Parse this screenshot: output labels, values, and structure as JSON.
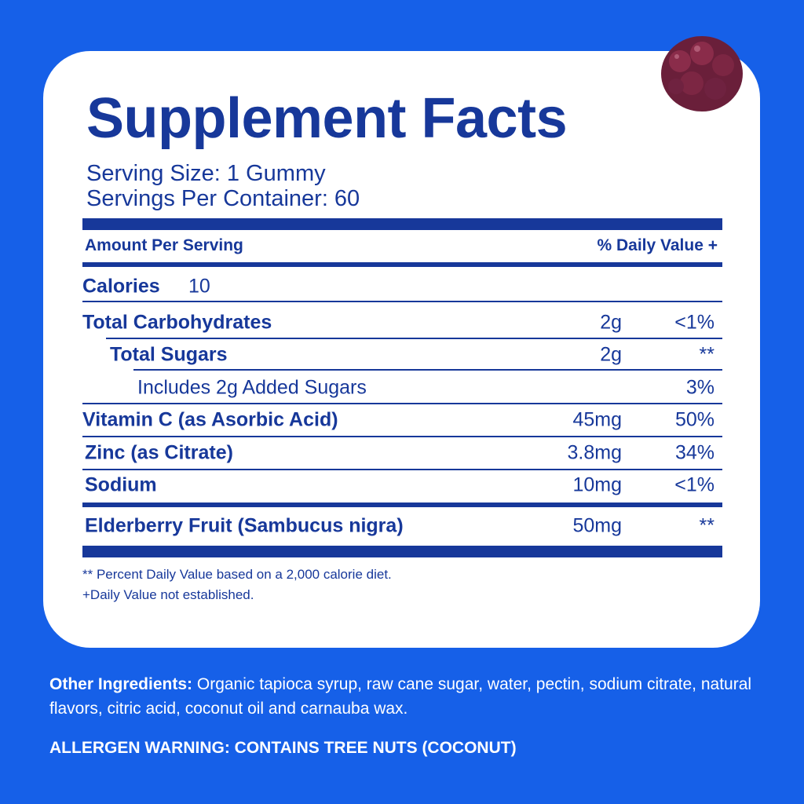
{
  "panel": {
    "title": "Supplement Facts",
    "serving_size": "Serving Size: 1 Gummy",
    "servings_per_container": "Servings Per Container: 60",
    "header": {
      "amount": "Amount Per Serving",
      "daily_value": "% Daily Value +"
    },
    "calories": {
      "label": "Calories",
      "value": "10"
    },
    "rows": [
      {
        "name": "Total Carbohydrates",
        "amount": "2g",
        "daily_value": "<1%"
      },
      {
        "name": "Total Sugars",
        "amount": "2g",
        "daily_value": "**"
      },
      {
        "name": "Includes 2g Added Sugars",
        "daily_value": "3%"
      },
      {
        "name": "Vitamin C (as Asorbic Acid)",
        "amount": "45mg",
        "daily_value": "50%"
      },
      {
        "name": "Zinc (as Citrate)",
        "amount": "3.8mg",
        "daily_value": "34%"
      },
      {
        "name": "Sodium",
        "amount": "10mg",
        "daily_value": "<1%"
      },
      {
        "name": "Elderberry Fruit (Sambucus nigra)",
        "amount": "50mg",
        "daily_value": "**"
      }
    ],
    "footnotes": [
      "** Percent Daily Value based on a 2,000 calorie diet.",
      "+Daily Value not established."
    ]
  },
  "other_ingredients": {
    "label": "Other Ingredients:",
    "text": "Organic tapioca syrup, raw cane sugar, water, pectin, sodium citrate, natural flavors, citric acid, coconut oil and carnauba wax."
  },
  "allergen_warning": "ALLERGEN WARNING: CONTAINS TREE NUTS (COCONUT)"
}
